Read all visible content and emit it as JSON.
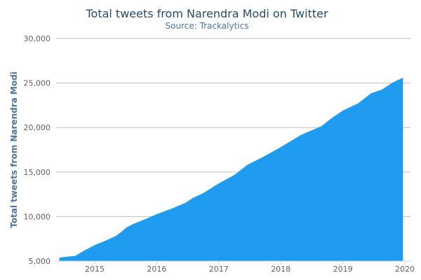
{
  "chart_data": {
    "type": "area",
    "title": "Total tweets from Narendra Modi on Twitter",
    "subtitle": "Source: Trackalytics",
    "xlabel": "",
    "ylabel": "Total tweets from Narendra Modi",
    "xlim": [
      2014.43,
      2020
    ],
    "ylim": [
      5000,
      30000
    ],
    "x_ticks": [
      "2015",
      "2016",
      "2017",
      "2018",
      "2019",
      "2020"
    ],
    "y_ticks": [
      "5,000",
      "10,000",
      "15,000",
      "20,000",
      "25,000",
      "30,000"
    ],
    "grid": "horizontal",
    "color": "#1f9cf0",
    "series": [
      {
        "x": [
          2014.43,
          2014.69,
          2014.83,
          2015.0,
          2015.17,
          2015.34,
          2015.42,
          2015.51,
          2015.62,
          2015.79,
          2016.0,
          2016.24,
          2016.46,
          2016.58,
          2016.75,
          2017.0,
          2017.25,
          2017.47,
          2017.7,
          2018.0,
          2018.32,
          2018.66,
          2018.83,
          2019.0,
          2019.24,
          2019.46,
          2019.63,
          2019.8,
          2019.97
        ],
        "y": [
          5390,
          5600,
          6180,
          6800,
          7280,
          7830,
          8220,
          8770,
          9170,
          9640,
          10270,
          10900,
          11530,
          12080,
          12630,
          13730,
          14670,
          15850,
          16640,
          17810,
          19150,
          20170,
          21120,
          21900,
          22690,
          23870,
          24260,
          25050,
          25600
        ]
      }
    ]
  }
}
